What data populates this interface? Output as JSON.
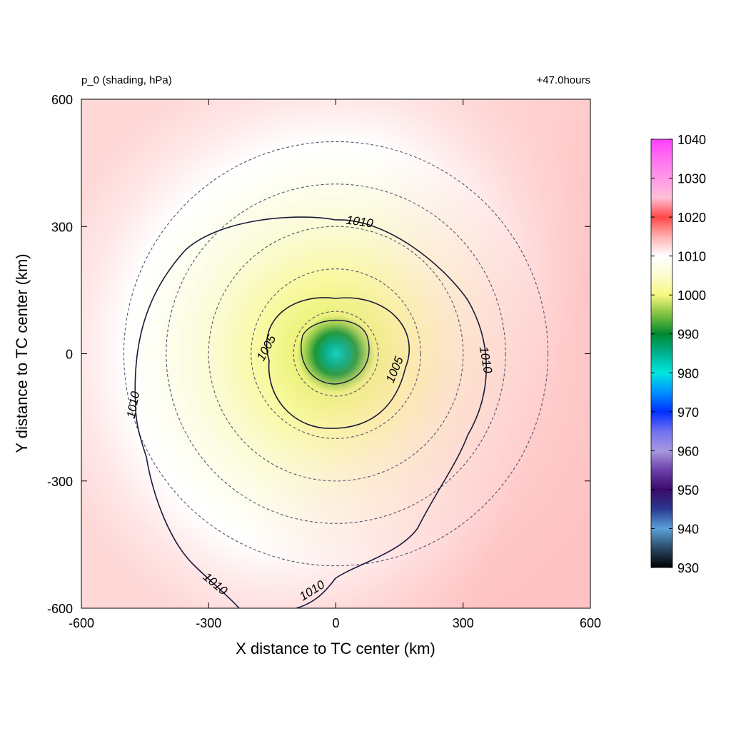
{
  "chart_data": {
    "type": "heatmap",
    "title": "p_0 (shading, hPa)",
    "subtitle": "+47.0hours",
    "xlabel": "X distance to TC center (km)",
    "ylabel": "Y distance to TC center (km)",
    "xlim": [
      -600,
      600
    ],
    "ylim": [
      -600,
      600
    ],
    "x_ticks": [
      "-600",
      "-300",
      "0",
      "300",
      "600"
    ],
    "y_ticks": [
      "-600",
      "-300",
      "0",
      "300",
      "600"
    ],
    "x_tick_values": [
      -600,
      -300,
      0,
      300,
      600
    ],
    "y_tick_values": [
      -600,
      -300,
      0,
      300,
      600
    ],
    "colorbar": {
      "min": 930,
      "max": 1040,
      "ticks": [
        "930",
        "940",
        "950",
        "960",
        "970",
        "980",
        "990",
        "1000",
        "1010",
        "1020",
        "1030",
        "1040"
      ],
      "stops": [
        {
          "value": 930,
          "color": "#000000"
        },
        {
          "value": 935,
          "color": "#2a4a66"
        },
        {
          "value": 940,
          "color": "#5aa0d8"
        },
        {
          "value": 945,
          "color": "#2a3a90"
        },
        {
          "value": 950,
          "color": "#3a0a6a"
        },
        {
          "value": 955,
          "color": "#6a40a8"
        },
        {
          "value": 960,
          "color": "#a898e0"
        },
        {
          "value": 965,
          "color": "#7070f0"
        },
        {
          "value": 970,
          "color": "#0030ff"
        },
        {
          "value": 975,
          "color": "#0090ff"
        },
        {
          "value": 980,
          "color": "#00e8e0"
        },
        {
          "value": 985,
          "color": "#00b090"
        },
        {
          "value": 990,
          "color": "#008a30"
        },
        {
          "value": 995,
          "color": "#80c040"
        },
        {
          "value": 1000,
          "color": "#f8f880"
        },
        {
          "value": 1005,
          "color": "#fbfbd0"
        },
        {
          "value": 1010,
          "color": "#ffffff"
        },
        {
          "value": 1015,
          "color": "#ffb0b0"
        },
        {
          "value": 1020,
          "color": "#ff4848"
        },
        {
          "value": 1025,
          "color": "#ffc0d8"
        },
        {
          "value": 1030,
          "color": "#ff98e8"
        },
        {
          "value": 1035,
          "color": "#ff70f0"
        },
        {
          "value": 1040,
          "color": "#ff40ff"
        }
      ]
    },
    "field": {
      "center": [
        0,
        0
      ],
      "min_pressure": 982,
      "background_pressure": 1012.5
    },
    "contours": [
      {
        "level": 1005,
        "labels": [
          "1005",
          "1005"
        ]
      },
      {
        "level": 1010,
        "labels": [
          "1010",
          "1010",
          "1010",
          "1010",
          "1010"
        ]
      }
    ],
    "range_rings_km": [
      100,
      200,
      300,
      400,
      500
    ],
    "grid": false
  }
}
